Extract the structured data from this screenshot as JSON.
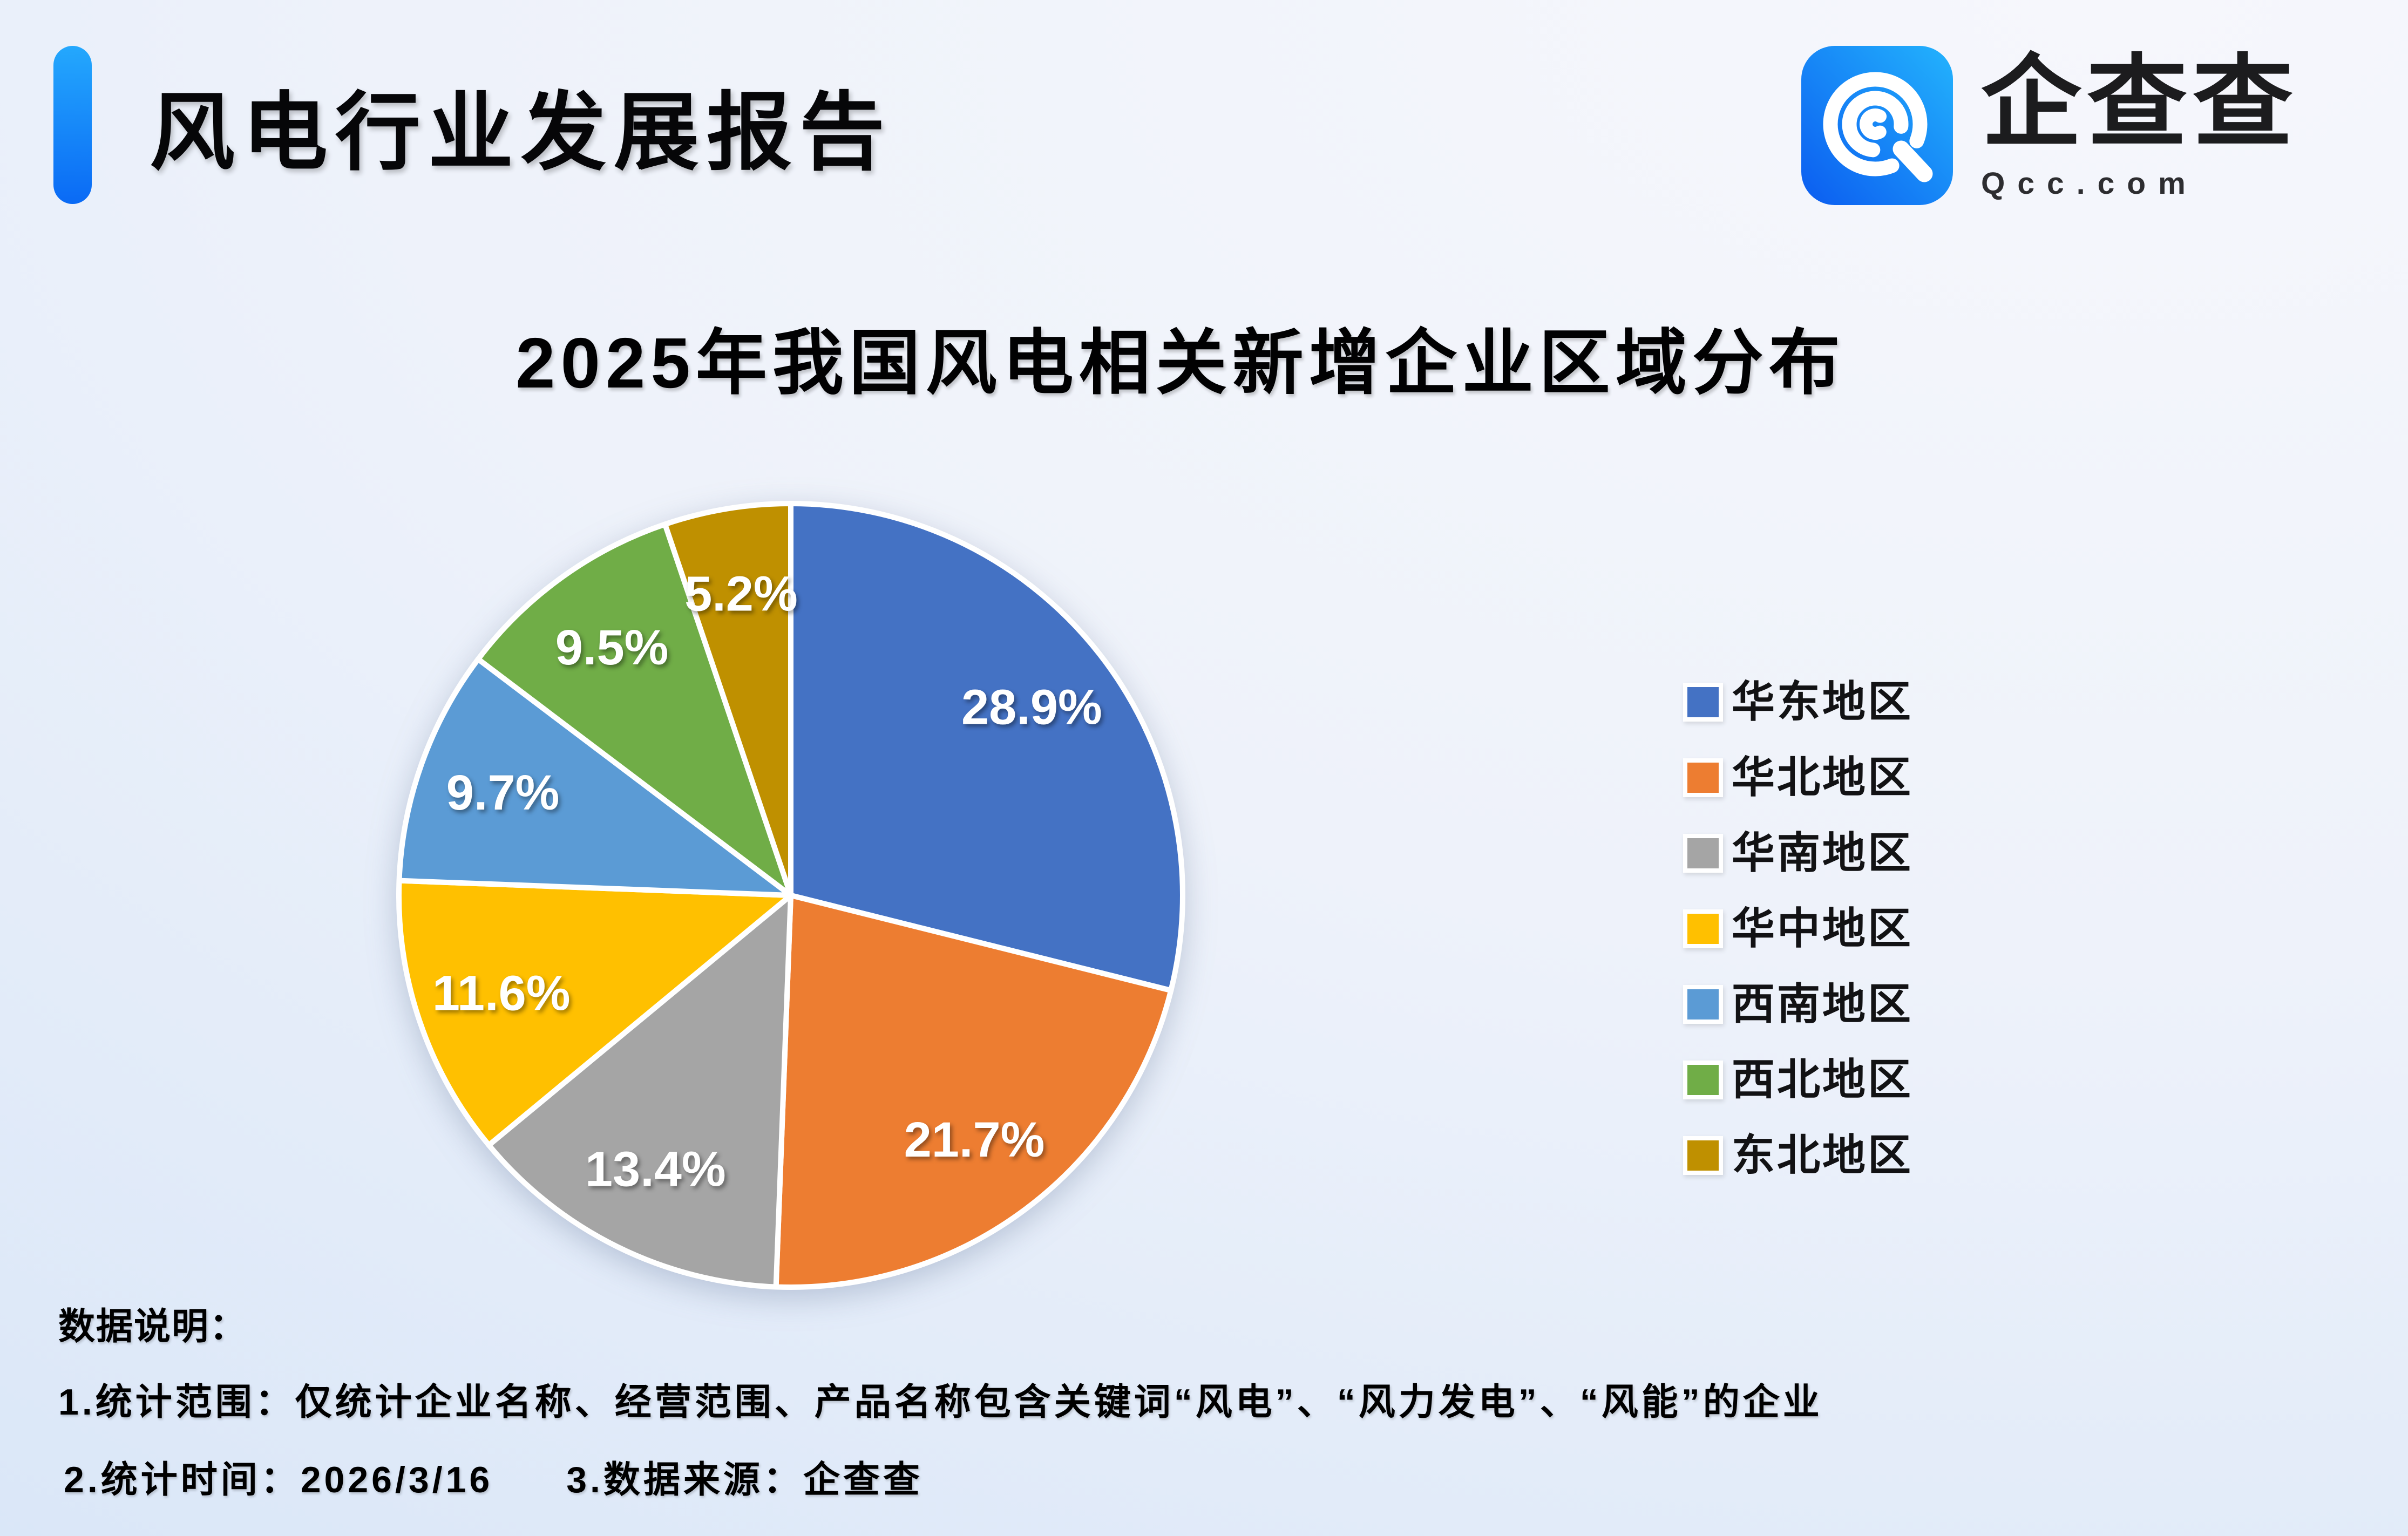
{
  "header": {
    "title": "风电行业发展报告"
  },
  "logo": {
    "brand": "企查查",
    "domain": "Qcc.com",
    "icon": "qcc-q-icon",
    "icon_gradient": [
      "#0b5cf0",
      "#23b3fd"
    ]
  },
  "chart_data": {
    "type": "pie",
    "title": "2025年我国风电相关新增企业区域分布",
    "labels": [
      "华东地区",
      "华北地区",
      "华南地区",
      "华中地区",
      "西南地区",
      "西北地区",
      "东北地区"
    ],
    "values": [
      28.9,
      21.7,
      13.4,
      11.6,
      9.7,
      9.5,
      5.2
    ],
    "slice_labels": [
      "28.9%",
      "21.7%",
      "13.4%",
      "11.6%",
      "9.7%",
      "9.5%",
      "5.2%"
    ],
    "colors": [
      "#4472C4",
      "#ED7D31",
      "#A5A5A5",
      "#FFC000",
      "#5B9BD5",
      "#70AD47",
      "#BF9000"
    ],
    "unit": "%",
    "start_angle_deg": 0,
    "direction": "clockwise",
    "label_format": "value%",
    "legend_position": "right",
    "slice_border_color": "#ffffff"
  },
  "footer": {
    "heading": "数据说明：",
    "note1": "1.统计范围：仅统计企业名称、经营范围、产品名称包含关键词“风电”、“风力发电”、“风能”的企业",
    "note2_time": "2.统计时间：2026/3/16",
    "note2_source": "3.数据来源：企查查"
  },
  "ui_colors": {
    "accent_bar_top": "#24a8fd",
    "accent_bar_bottom": "#0a6af5",
    "background_top": "#f6f7fc",
    "background_bottom_left": "#d9e6f8",
    "title_text": "#060608",
    "label_text": "#ffffff"
  }
}
